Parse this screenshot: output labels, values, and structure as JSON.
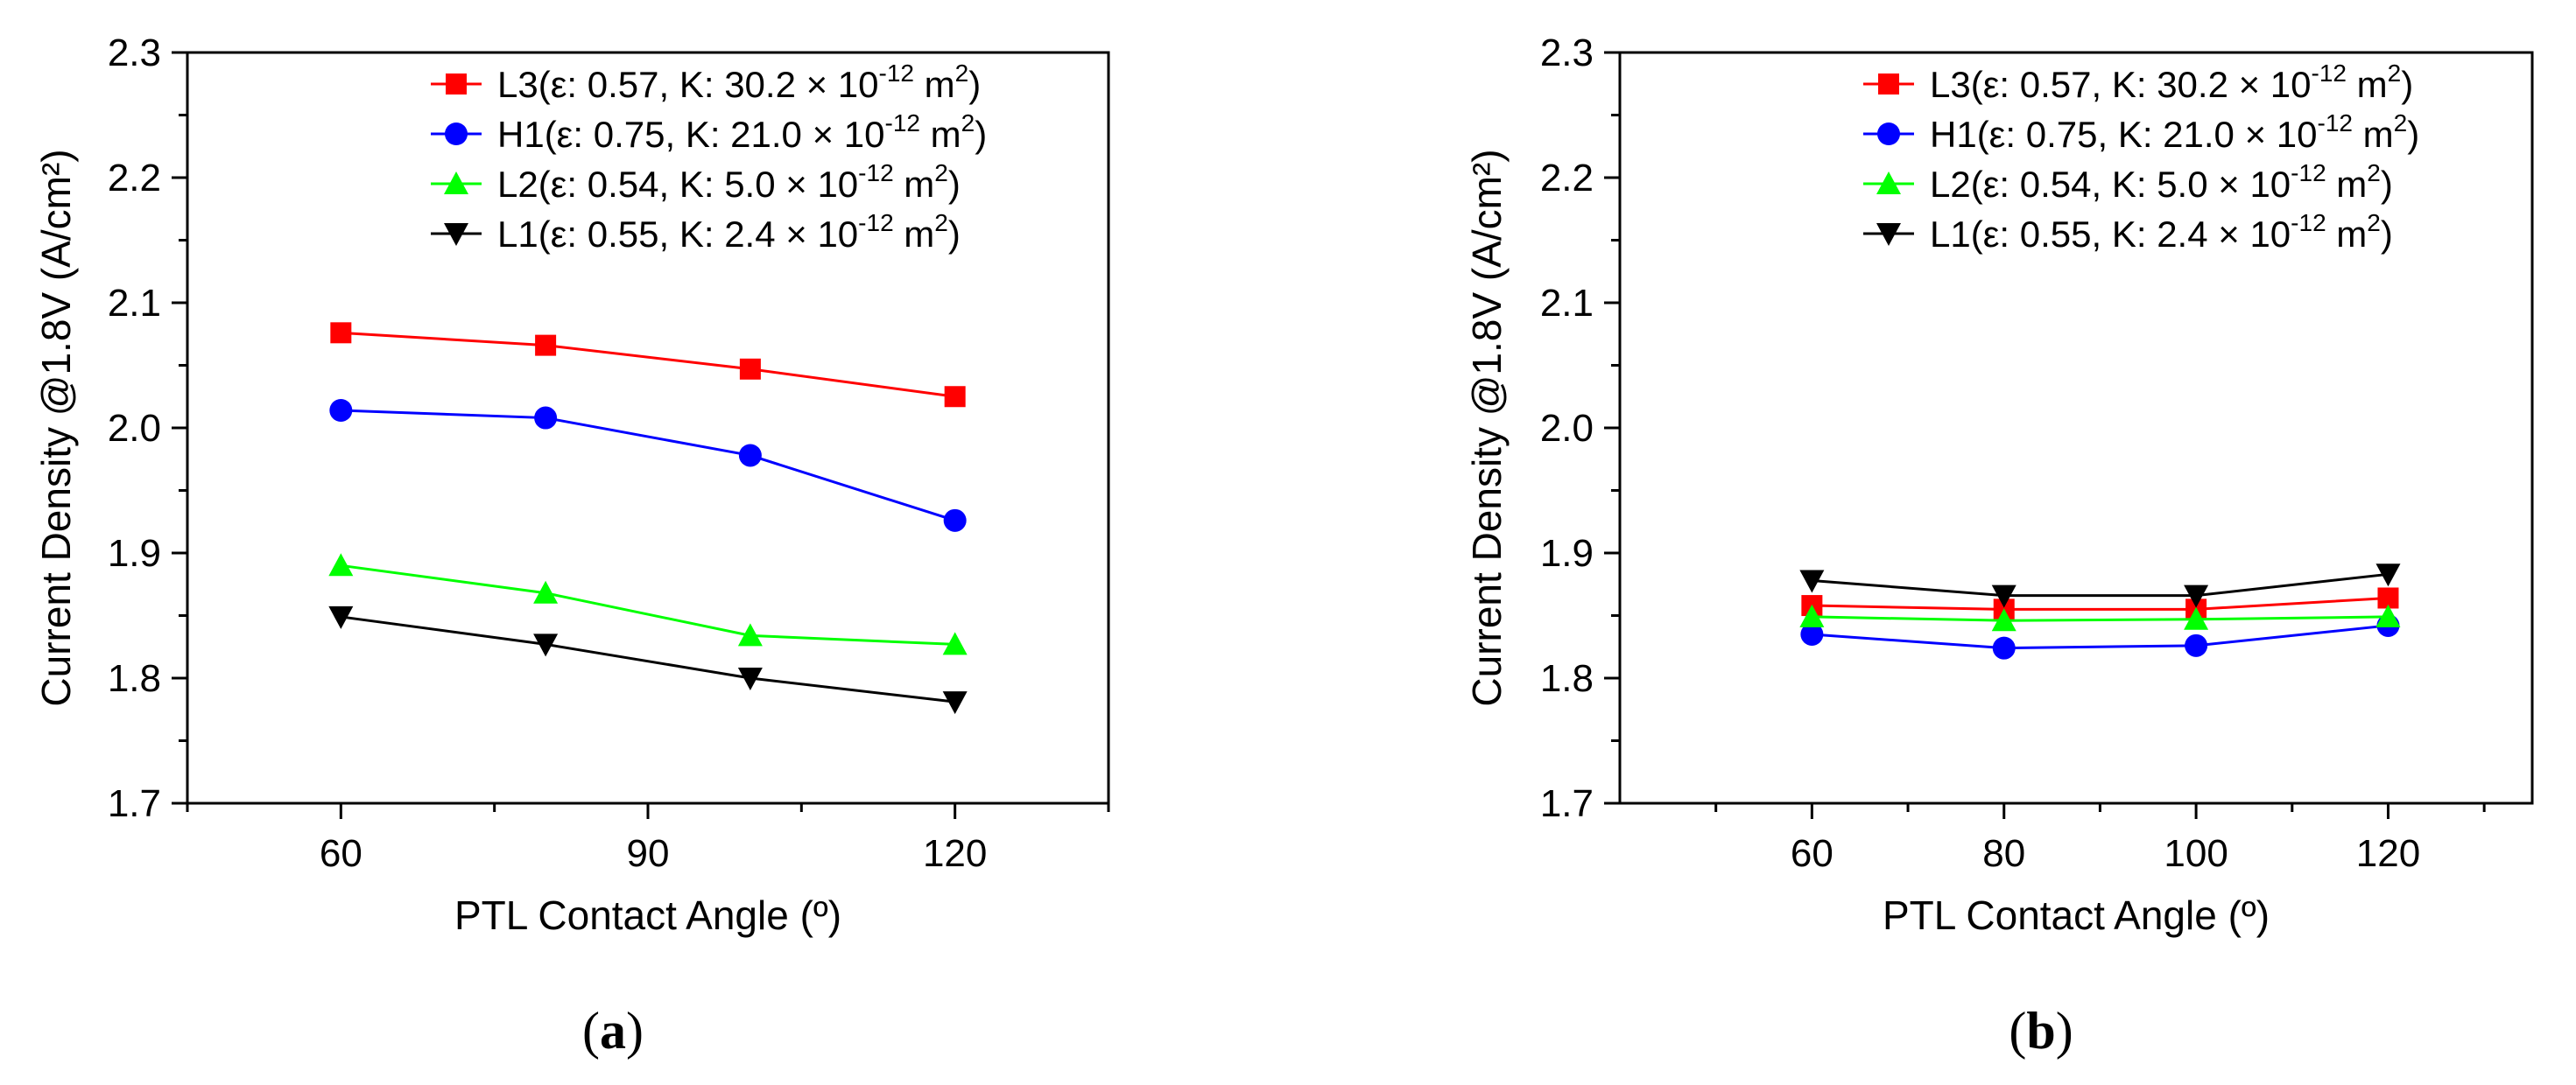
{
  "chart_data": [
    {
      "type": "line",
      "panel_label": "a",
      "xlabel": "PTL Contact Angle (º)",
      "ylabel": "Current Density @1.8V (A/cm²)",
      "xlim": [
        45,
        135
      ],
      "ylim": [
        1.7,
        2.3
      ],
      "xticks": [
        60,
        90,
        120
      ],
      "yticks": [
        1.7,
        1.8,
        1.9,
        2.0,
        2.1,
        2.2,
        2.3
      ],
      "ytick_labels": [
        "1.7",
        "1.8",
        "1.9",
        "2.0",
        "2.1",
        "2.2",
        "2.3"
      ],
      "legend_position": "top-right",
      "x": [
        60,
        80,
        100,
        120
      ],
      "series": [
        {
          "name": "L3(ε: 0.57, K: 30.2 × 10",
          "sup": "-12",
          "unit": " m",
          "unit_sup": "2",
          "unit_close": ")",
          "color": "#ff0000",
          "marker": "square",
          "values": [
            2.076,
            2.066,
            2.047,
            2.025
          ]
        },
        {
          "name": "H1(ε: 0.75, K: 21.0 × 10",
          "sup": "-12",
          "unit": " m",
          "unit_sup": "2",
          "unit_close": ")",
          "color": "#0000ff",
          "marker": "circle",
          "values": [
            2.014,
            2.008,
            1.978,
            1.926
          ]
        },
        {
          "name": "L2(ε: 0.54, K: 5.0 × 10",
          "sup": "-12",
          "unit": " m",
          "unit_sup": "2",
          "unit_close": ")",
          "color": "#00ff00",
          "marker": "triangle-up",
          "values": [
            1.89,
            1.868,
            1.834,
            1.827
          ]
        },
        {
          "name": "L1(ε: 0.55, K: 2.4 × 10",
          "sup": "-12",
          "unit": " m",
          "unit_sup": "2",
          "unit_close": ")",
          "color": "#000000",
          "marker": "triangle-down",
          "values": [
            1.849,
            1.827,
            1.8,
            1.781
          ]
        }
      ]
    },
    {
      "type": "line",
      "panel_label": "b",
      "xlabel": "PTL Contact Angle (º)",
      "ylabel": "Current Density @1.8V (A/cm²)",
      "xlim": [
        40,
        135
      ],
      "ylim": [
        1.7,
        2.3
      ],
      "xticks": [
        60,
        80,
        100,
        120
      ],
      "yticks": [
        1.7,
        1.8,
        1.9,
        2.0,
        2.1,
        2.2,
        2.3
      ],
      "ytick_labels": [
        "1.7",
        "1.8",
        "1.9",
        "2.0",
        "2.1",
        "2.2",
        "2.3"
      ],
      "legend_position": "top-right",
      "x": [
        60,
        80,
        100,
        120
      ],
      "series": [
        {
          "name": "L3(ε: 0.57, K: 30.2 × 10",
          "sup": "-12",
          "unit": " m",
          "unit_sup": "2",
          "unit_close": ")",
          "color": "#ff0000",
          "marker": "square",
          "values": [
            1.858,
            1.855,
            1.855,
            1.864
          ]
        },
        {
          "name": "H1(ε: 0.75, K: 21.0 × 10",
          "sup": "-12",
          "unit": " m",
          "unit_sup": "2",
          "unit_close": ")",
          "color": "#0000ff",
          "marker": "circle",
          "values": [
            1.835,
            1.824,
            1.826,
            1.842
          ]
        },
        {
          "name": "L2(ε: 0.54, K: 5.0 × 10",
          "sup": "-12",
          "unit": " m",
          "unit_sup": "2",
          "unit_close": ")",
          "color": "#00ff00",
          "marker": "triangle-up",
          "values": [
            1.849,
            1.846,
            1.847,
            1.849
          ]
        },
        {
          "name": "L1(ε: 0.55, K: 2.4 × 10",
          "sup": "-12",
          "unit": " m",
          "unit_sup": "2",
          "unit_close": ")",
          "color": "#000000",
          "marker": "triangle-down",
          "values": [
            1.878,
            1.866,
            1.866,
            1.883
          ]
        }
      ]
    }
  ]
}
